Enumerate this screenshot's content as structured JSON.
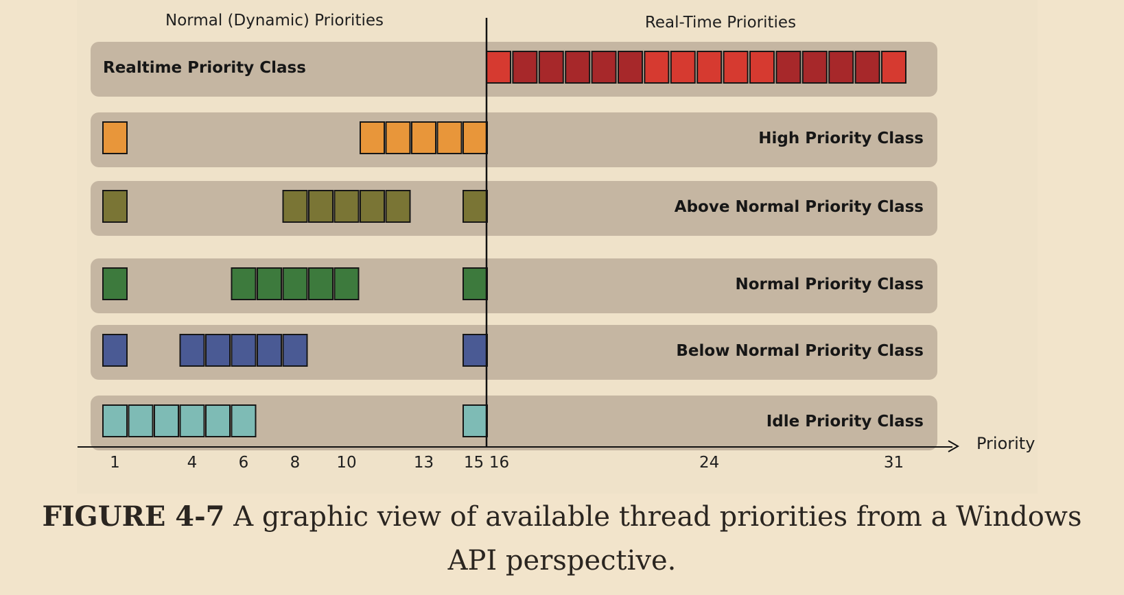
{
  "diagram": {
    "sections": {
      "normal": "Normal (Dynamic) Priorities",
      "realtime": "Real-Time Priorities"
    },
    "axis_label": "Priority",
    "ticks": [
      1,
      4,
      6,
      8,
      10,
      13,
      15,
      16,
      24,
      31
    ],
    "rows": [
      {
        "label": "Realtime Priority Class",
        "color": "#d63a30",
        "alt_color": "#a7282a",
        "label_side": "left",
        "levels": [
          16,
          17,
          18,
          19,
          20,
          21,
          22,
          23,
          24,
          25,
          26,
          27,
          28,
          29,
          30,
          31
        ],
        "alt_levels": [
          17,
          18,
          19,
          20,
          21,
          27,
          28,
          29,
          30
        ]
      },
      {
        "label": "High Priority Class",
        "color": "#e8963a",
        "label_side": "right",
        "levels": [
          1,
          11,
          12,
          13,
          14,
          15
        ]
      },
      {
        "label": "Above Normal Priority Class",
        "color": "#7a7535",
        "label_side": "right",
        "levels": [
          1,
          8,
          9,
          10,
          11,
          12,
          15
        ]
      },
      {
        "label": "Normal Priority Class",
        "color": "#3d7a3d",
        "label_side": "right",
        "levels": [
          1,
          6,
          7,
          8,
          9,
          10,
          15
        ]
      },
      {
        "label": "Below Normal Priority Class",
        "color": "#4a5a94",
        "label_side": "right",
        "levels": [
          1,
          4,
          5,
          6,
          7,
          8,
          15
        ]
      },
      {
        "label": "Idle Priority Class",
        "color": "#7ebbb5",
        "label_side": "right",
        "levels": [
          1,
          2,
          3,
          4,
          5,
          6,
          15
        ]
      }
    ]
  },
  "caption": {
    "bold": "FIGURE 4-7",
    "line1": "A graphic view of available thread priorities from a Windows",
    "line2": "API perspective."
  }
}
